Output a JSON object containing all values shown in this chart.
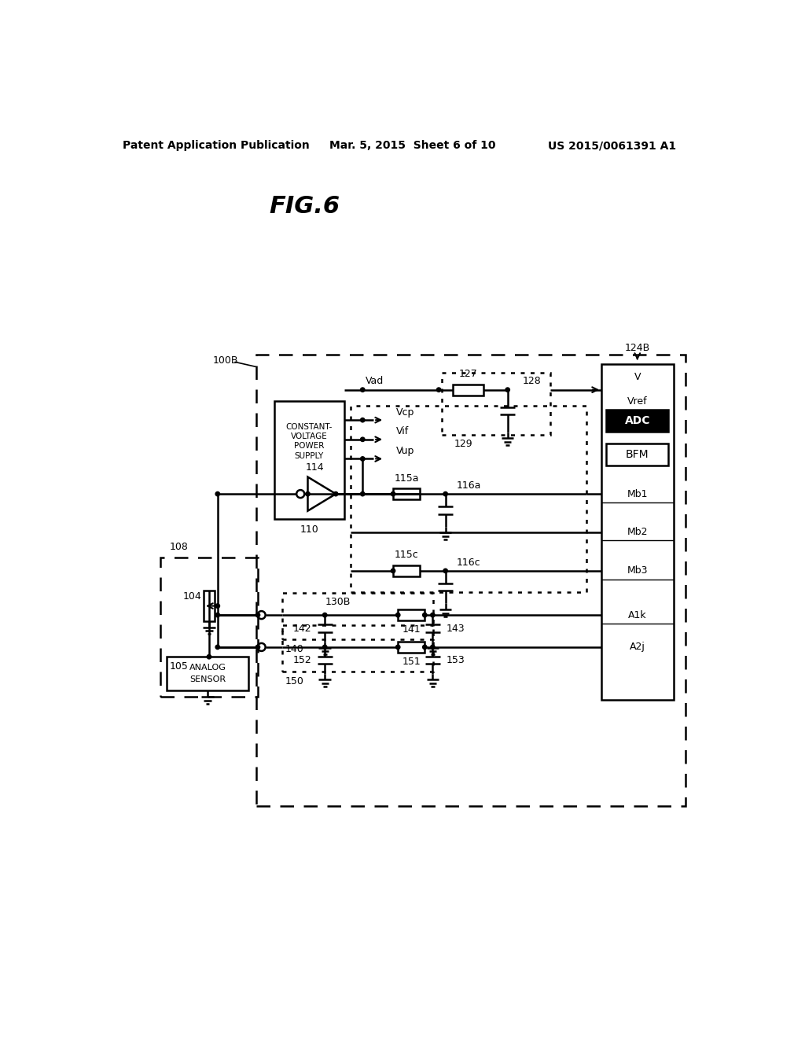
{
  "header_left": "Patent Application Publication",
  "header_mid": "Mar. 5, 2015  Sheet 6 of 10",
  "header_right": "US 2015/0061391 A1",
  "fig_label": "FIG.6",
  "bg_color": "#ffffff"
}
